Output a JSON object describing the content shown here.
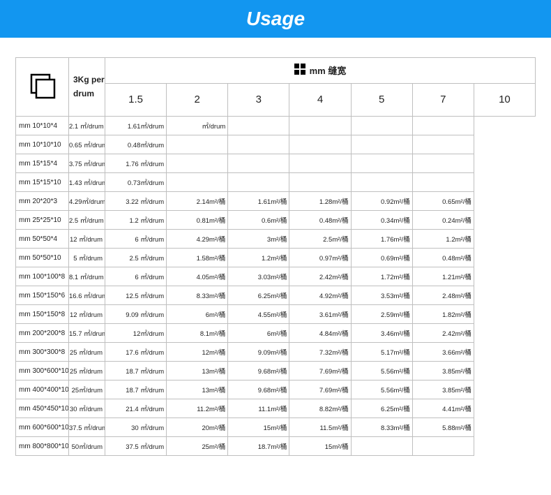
{
  "title": "Usage",
  "colors": {
    "title_bg": "#1296f0",
    "title_text": "#ffffff",
    "border": "#bfbfbf",
    "text": "#222222",
    "background": "#ffffff"
  },
  "seam_header": "mm 缝宽",
  "drum_label": "3Kg per drum",
  "col_headers": [
    "1.5",
    "2",
    "3",
    "4",
    "5",
    "7",
    "10"
  ],
  "rows": [
    {
      "size": "mm 10*10*4",
      "vals": [
        "2.1 ㎡/drum",
        "1.61㎡/drum",
        "㎡/drum",
        "",
        "",
        "",
        ""
      ]
    },
    {
      "size": "mm 10*10*10",
      "vals": [
        "0.65 ㎡/drum",
        "0.48㎡/drum",
        "",
        "",
        "",
        "",
        ""
      ]
    },
    {
      "size": "mm 15*15*4",
      "vals": [
        "3.75 ㎡/drum",
        "1.76 ㎡/drum",
        "",
        "",
        "",
        "",
        ""
      ]
    },
    {
      "size": "mm 15*15*10",
      "vals": [
        "1.43 ㎡/drum",
        "0.73㎡/drum",
        "",
        "",
        "",
        "",
        ""
      ]
    },
    {
      "size": "mm 20*20*3",
      "vals": [
        "4.29㎡/drum",
        "3.22 ㎡/drum",
        "2.14m²/桶",
        "1.61m²/桶",
        "1.28m²/桶",
        "0.92m²/桶",
        "0.65m²/桶"
      ]
    },
    {
      "size": "mm 25*25*10",
      "vals": [
        "2.5 ㎡/drum",
        "1.2 ㎡/drum",
        "0.81m²/桶",
        "0.6m²/桶",
        "0.48m²/桶",
        "0.34m²/桶",
        "0.24m²/桶"
      ]
    },
    {
      "size": "mm 50*50*4",
      "vals": [
        "12 ㎡/drum",
        "6   ㎡/drum",
        "4.29m²/桶",
        "3m²/桶",
        "2.5m²/桶",
        "1.76m²/桶",
        "1.2m²/桶"
      ]
    },
    {
      "size": "mm 50*50*10",
      "vals": [
        "5 ㎡/drum",
        "2.5 ㎡/drum",
        "1.58m²/桶",
        "1.2m²/桶",
        "0.97m²/桶",
        "0.69m²/桶",
        "0.48m²/桶"
      ]
    },
    {
      "size": "mm 100*100*8",
      "vals": [
        "8.1 ㎡/drum",
        "6   ㎡/drum",
        "4.05m²/桶",
        "3.03m²/桶",
        "2.42m²/桶",
        "1.72m²/桶",
        "1.21m²/桶"
      ]
    },
    {
      "size": "mm 150*150*6",
      "vals": [
        "16.6 ㎡/drum",
        "12.5 ㎡/drum",
        "8.33m²/桶",
        "6.25m²/桶",
        "4.92m²/桶",
        "3.53m²/桶",
        "2.48m²/桶"
      ]
    },
    {
      "size": "mm 150*150*8",
      "vals": [
        "12 ㎡/drum",
        "9.09 ㎡/drum",
        "6m²/桶",
        "4.55m²/桶",
        "3.61m²/桶",
        "2.59m²/桶",
        "1.82m²/桶"
      ]
    },
    {
      "size": "mm 200*200*8",
      "vals": [
        "15.7 ㎡/drum",
        "12㎡/drum",
        "8.1m²/桶",
        "6m²/桶",
        "4.84m²/桶",
        "3.46m²/桶",
        "2.42m²/桶"
      ]
    },
    {
      "size": "mm 300*300*8",
      "vals": [
        "25 ㎡/drum",
        "17.6 ㎡/drum",
        "12m²/桶",
        "9.09m²/桶",
        "7.32m²/桶",
        "5.17m²/桶",
        "3.66m²/桶"
      ]
    },
    {
      "size": "mm 300*600*10",
      "vals": [
        "25 ㎡/drum",
        "18.7 ㎡/drum",
        "13m²/桶",
        "9.68m²/桶",
        "7.69m²/桶",
        "5.56m²/桶",
        "3.85m²/桶"
      ]
    },
    {
      "size": "mm 400*400*10",
      "vals": [
        "25㎡/drum",
        "18.7 ㎡/drum",
        "13m²/桶",
        "9.68m²/桶",
        "7.69m²/桶",
        "5.56m²/桶",
        "3.85m²/桶"
      ]
    },
    {
      "size": "mm 450*450*10",
      "vals": [
        "30 ㎡/drum",
        "21.4 ㎡/drum",
        "11.2m²/桶",
        "11.1m²/桶",
        "8.82m²/桶",
        "6.25m²/桶",
        "4.41m²/桶"
      ]
    },
    {
      "size": "mm 600*600*10",
      "vals": [
        "37.5 ㎡/drum",
        "30 ㎡/drum",
        "20m²/桶",
        "15m²/桶",
        "11.5m²/桶",
        "8.33m²/桶",
        "5.88m²/桶"
      ]
    },
    {
      "size": "mm 800*800*10",
      "vals": [
        "50㎡/drum",
        "37.5 ㎡/drum",
        "25m²/桶",
        "18.7m²/桶",
        "15m²/桶",
        "",
        ""
      ]
    }
  ]
}
